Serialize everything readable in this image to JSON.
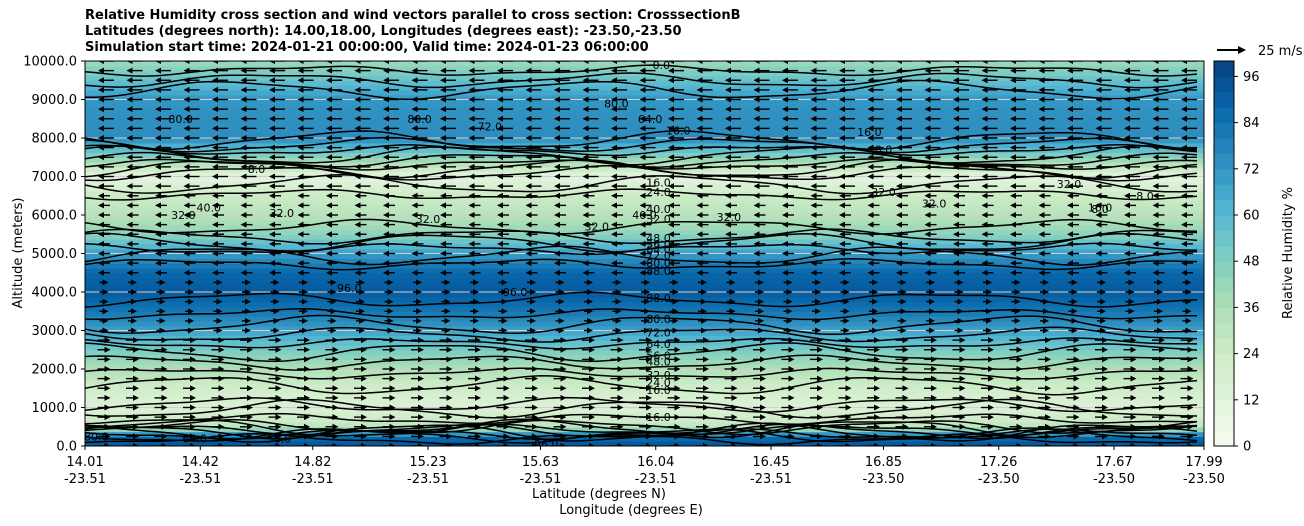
{
  "chart_data": {
    "type": "contour",
    "title_lines": [
      "Relative Humidity cross section and wind vectors parallel to cross section: CrosssectionB",
      "Latitudes (degrees north): 14.00,18.00, Longitudes (degrees east): -23.50,-23.50",
      "Simulation start time: 2024-01-21 00:00:00, Valid time: 2024-01-23 06:00:00"
    ],
    "ylabel": "Altitude (meters)",
    "xlabel_lat": "Latitude (degrees N)",
    "xlabel_lon": "Longitude (degrees E)",
    "colorbar_label": "Relative Humidity %",
    "colorbar_ticks": [
      "0",
      "12",
      "24",
      "36",
      "48",
      "60",
      "72",
      "84",
      "96"
    ],
    "colorbar_range": [
      0,
      100
    ],
    "quiver_key": "25 m/s",
    "ylim": [
      0,
      10000
    ],
    "yticks": [
      "0.0",
      "1000.0",
      "2000.0",
      "3000.0",
      "4000.0",
      "5000.0",
      "6000.0",
      "7000.0",
      "8000.0",
      "9000.0",
      "10000.0"
    ],
    "xticks_lat": [
      "14.01",
      "14.42",
      "14.82",
      "15.23",
      "15.63",
      "16.04",
      "16.45",
      "16.85",
      "17.26",
      "17.67",
      "17.99"
    ],
    "xticks_lon": [
      "-23.51",
      "-23.51",
      "-23.51",
      "-23.51",
      "-23.51",
      "-23.51",
      "-23.51",
      "-23.50",
      "-23.50",
      "-23.50",
      "-23.50"
    ],
    "rh_profile": [
      {
        "alt": 0,
        "rh": 95
      },
      {
        "alt": 250,
        "rh": 85
      },
      {
        "alt": 500,
        "rh": 30
      },
      {
        "alt": 1000,
        "rh": 15
      },
      {
        "alt": 1500,
        "rh": 22
      },
      {
        "alt": 2000,
        "rh": 35
      },
      {
        "alt": 2500,
        "rh": 50
      },
      {
        "alt": 3000,
        "rh": 68
      },
      {
        "alt": 3500,
        "rh": 82
      },
      {
        "alt": 4000,
        "rh": 92
      },
      {
        "alt": 4500,
        "rh": 88
      },
      {
        "alt": 5000,
        "rh": 70
      },
      {
        "alt": 5500,
        "rh": 45
      },
      {
        "alt": 6000,
        "rh": 32
      },
      {
        "alt": 6500,
        "rh": 25
      },
      {
        "alt": 7000,
        "rh": 10
      },
      {
        "alt": 7500,
        "rh": 45
      },
      {
        "alt": 8000,
        "rh": 75
      },
      {
        "alt": 9000,
        "rh": 72
      },
      {
        "alt": 10000,
        "rh": 40
      }
    ],
    "contour_labels": [
      {
        "text": "80.0",
        "x": 14.05,
        "alt": 250
      },
      {
        "text": "64.0",
        "x": 14.4,
        "alt": 200
      },
      {
        "text": "56.0",
        "x": 14.7,
        "alt": 200
      },
      {
        "text": "96.0",
        "x": 15.65,
        "alt": 50
      },
      {
        "text": "16.0",
        "x": 16.05,
        "alt": 750
      },
      {
        "text": "16.0",
        "x": 16.05,
        "alt": 1450
      },
      {
        "text": "24.0",
        "x": 16.05,
        "alt": 1650
      },
      {
        "text": "32.0",
        "x": 16.05,
        "alt": 1850
      },
      {
        "text": "48.0",
        "x": 16.05,
        "alt": 2200
      },
      {
        "text": "56.0",
        "x": 16.05,
        "alt": 2350
      },
      {
        "text": "64.0",
        "x": 16.05,
        "alt": 2650
      },
      {
        "text": "72.0",
        "x": 16.05,
        "alt": 2950
      },
      {
        "text": "80.0",
        "x": 16.05,
        "alt": 3300
      },
      {
        "text": "88.0",
        "x": 16.05,
        "alt": 3850
      },
      {
        "text": "88.0",
        "x": 16.05,
        "alt": 4550
      },
      {
        "text": "80.0",
        "x": 16.05,
        "alt": 4750
      },
      {
        "text": "72.0",
        "x": 16.05,
        "alt": 4950
      },
      {
        "text": "64.0",
        "x": 16.05,
        "alt": 5100
      },
      {
        "text": "56.0",
        "x": 16.05,
        "alt": 5250
      },
      {
        "text": "48.0",
        "x": 16.05,
        "alt": 5400
      },
      {
        "text": "32.0",
        "x": 16.05,
        "alt": 5900
      },
      {
        "text": "32.0",
        "x": 16.3,
        "alt": 5950
      },
      {
        "text": "40.0",
        "x": 16.05,
        "alt": 6150
      },
      {
        "text": "24.0",
        "x": 16.05,
        "alt": 6600
      },
      {
        "text": "16.0",
        "x": 16.05,
        "alt": 6850
      },
      {
        "text": "8.0",
        "x": 16.85,
        "alt": 7700
      },
      {
        "text": "16.0",
        "x": 16.8,
        "alt": 8150
      },
      {
        "text": "32.0",
        "x": 16.85,
        "alt": 6600
      },
      {
        "text": "32.0",
        "x": 17.03,
        "alt": 6300
      },
      {
        "text": "32.0",
        "x": 17.51,
        "alt": 6800
      },
      {
        "text": "16.0",
        "x": 17.62,
        "alt": 6200
      },
      {
        "text": "8.0",
        "x": 17.62,
        "alt": 6150
      },
      {
        "text": "8.0",
        "x": 17.78,
        "alt": 6500
      },
      {
        "text": "96.0",
        "x": 14.95,
        "alt": 4100
      },
      {
        "text": "96.0",
        "x": 15.54,
        "alt": 4000
      },
      {
        "text": "40.0",
        "x": 16.0,
        "alt": 6000
      },
      {
        "text": "32.0",
        "x": 15.23,
        "alt": 5900
      },
      {
        "text": "32.0",
        "x": 15.83,
        "alt": 5700
      },
      {
        "text": "32.0",
        "x": 14.71,
        "alt": 6050
      },
      {
        "text": "40.0",
        "x": 14.45,
        "alt": 6200
      },
      {
        "text": "32.0",
        "x": 14.36,
        "alt": 6000
      },
      {
        "text": "8.0",
        "x": 14.62,
        "alt": 7200
      },
      {
        "text": "80.0",
        "x": 14.35,
        "alt": 8500
      },
      {
        "text": "80.0",
        "x": 15.2,
        "alt": 8500
      },
      {
        "text": "72.0",
        "x": 15.45,
        "alt": 8300
      },
      {
        "text": "80.0",
        "x": 15.9,
        "alt": 8900
      },
      {
        "text": "64.0",
        "x": 16.02,
        "alt": 8500
      },
      {
        "text": "16.0",
        "x": 16.12,
        "alt": 8200
      },
      {
        "text": "0.0",
        "x": 16.06,
        "alt": 9900
      }
    ],
    "wind": {
      "upper_direction": "left",
      "lower_direction": "right",
      "reversal_alt": 4500
    }
  }
}
